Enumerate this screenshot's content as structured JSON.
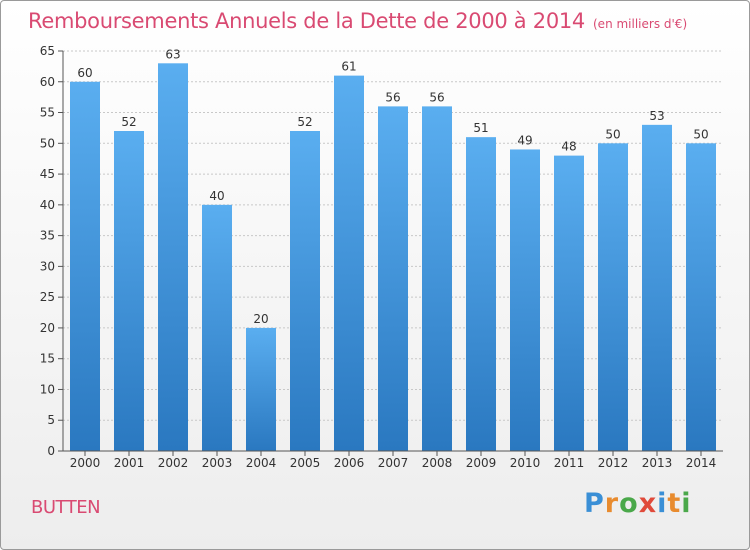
{
  "header": {
    "title": "Remboursements Annuels de la Dette de 2000 à 2014",
    "unit": "(en milliers d'€)"
  },
  "footer": {
    "town": "BUTTEN",
    "logo": "Proxiti"
  },
  "colors": {
    "title": "#d94a72",
    "bar_top": "#5aaef0",
    "bar_bottom": "#2a78c0"
  },
  "chart_data": {
    "type": "bar",
    "title": "Remboursements Annuels de la Dette de 2000 à 2014",
    "subtitle": "(en milliers d'€)",
    "categories": [
      "2000",
      "2001",
      "2002",
      "2003",
      "2004",
      "2005",
      "2006",
      "2007",
      "2008",
      "2009",
      "2010",
      "2011",
      "2012",
      "2013",
      "2014"
    ],
    "values": [
      60,
      52,
      63,
      40,
      20,
      52,
      61,
      56,
      56,
      51,
      49,
      48,
      50,
      53,
      50
    ],
    "ylim": [
      0,
      65
    ],
    "yticks": [
      0,
      5,
      10,
      15,
      20,
      25,
      30,
      35,
      40,
      45,
      50,
      55,
      60,
      65
    ],
    "grid": true,
    "data_labels": true,
    "legend": "none"
  }
}
